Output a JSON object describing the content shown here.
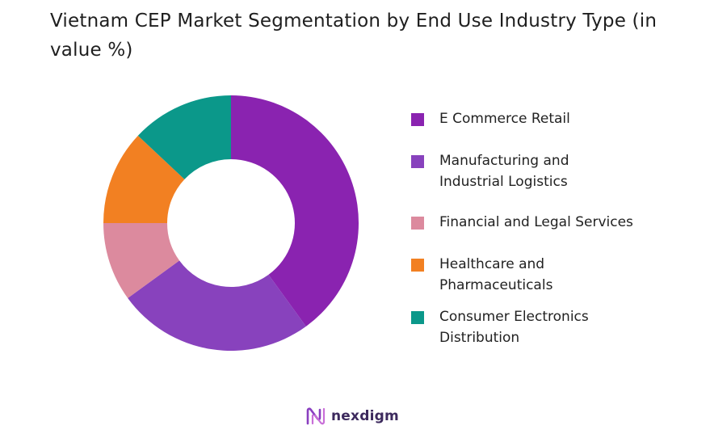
{
  "chart_data": {
    "type": "pie",
    "title": "Vietnam CEP Market Segmentation by  End Use Industry Type (in value %)",
    "categories": [
      "E Commerce Retail",
      "Manufacturing and\nIndustrial Logistics",
      "Financial and Legal Services",
      "Healthcare and\nPharmaceuticals",
      "Consumer Electronics\nDistribution"
    ],
    "values": [
      40,
      25,
      10,
      12,
      13
    ],
    "colors": [
      "#8a23b0",
      "#8842bd",
      "#dc8a9e",
      "#f28022",
      "#0b988a"
    ],
    "donut": true,
    "legend_position": "right"
  },
  "branding": {
    "logo_text": "nexdigm"
  }
}
